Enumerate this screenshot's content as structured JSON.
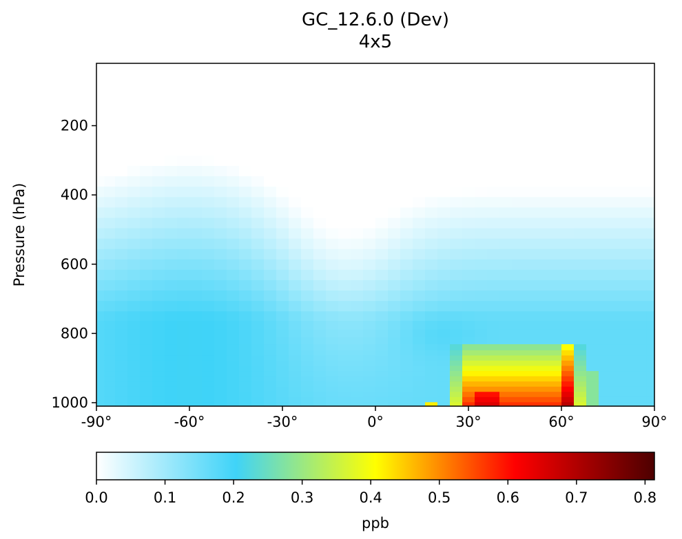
{
  "chart_data": {
    "type": "heatmap",
    "title": "GC_12.6.0 (Dev)",
    "subtitle": "4x5",
    "ylabel": "Pressure (hPa)",
    "xlabel": "",
    "x_axis": {
      "range": [
        -90,
        90
      ],
      "ticks": [
        -90,
        -60,
        -30,
        0,
        30,
        60,
        90
      ],
      "tick_labels": [
        "-90°",
        "-60°",
        "-30°",
        "0°",
        "30°",
        "60°",
        "90°"
      ]
    },
    "y_axis": {
      "range": [
        1010,
        20
      ],
      "inverted": true,
      "ticks": [
        200,
        400,
        600,
        800,
        1000
      ],
      "tick_labels": [
        "200",
        "400",
        "600",
        "800",
        "1000"
      ]
    },
    "colorbar": {
      "label": "ppb",
      "range": [
        0,
        0.8137
      ],
      "ticks": [
        0.0,
        0.1,
        0.2,
        0.3,
        0.4,
        0.5,
        0.6,
        0.7,
        0.8
      ],
      "tick_labels": [
        "0.0",
        "0.1",
        "0.2",
        "0.3",
        "0.4",
        "0.5",
        "0.6",
        "0.7",
        "0.8"
      ],
      "colormap": [
        "#ffffff",
        "#3fd3f8",
        "#ffff00",
        "#ff0000",
        "#4d0000"
      ]
    },
    "grid_spec": {
      "latitudes": [
        -89,
        -86,
        -82,
        -78,
        -74,
        -70,
        -66,
        -62,
        -58,
        -54,
        -50,
        -46,
        -42,
        -38,
        -34,
        -30,
        -26,
        -22,
        -18,
        -14,
        -10,
        -6,
        -2,
        2,
        6,
        10,
        14,
        18,
        22,
        26,
        30,
        34,
        38,
        42,
        46,
        50,
        54,
        58,
        62,
        66,
        70,
        74,
        78,
        82,
        86,
        89
      ],
      "levels_hpa": [
        1005,
        990,
        975,
        960,
        945,
        930,
        915,
        900,
        885,
        870,
        855,
        840,
        820,
        800,
        775,
        750,
        720,
        690,
        660,
        630,
        600,
        570,
        540,
        510,
        480,
        450,
        420,
        390,
        360,
        330,
        300,
        270,
        240,
        210,
        180,
        150,
        120,
        90,
        60,
        30
      ]
    }
  }
}
